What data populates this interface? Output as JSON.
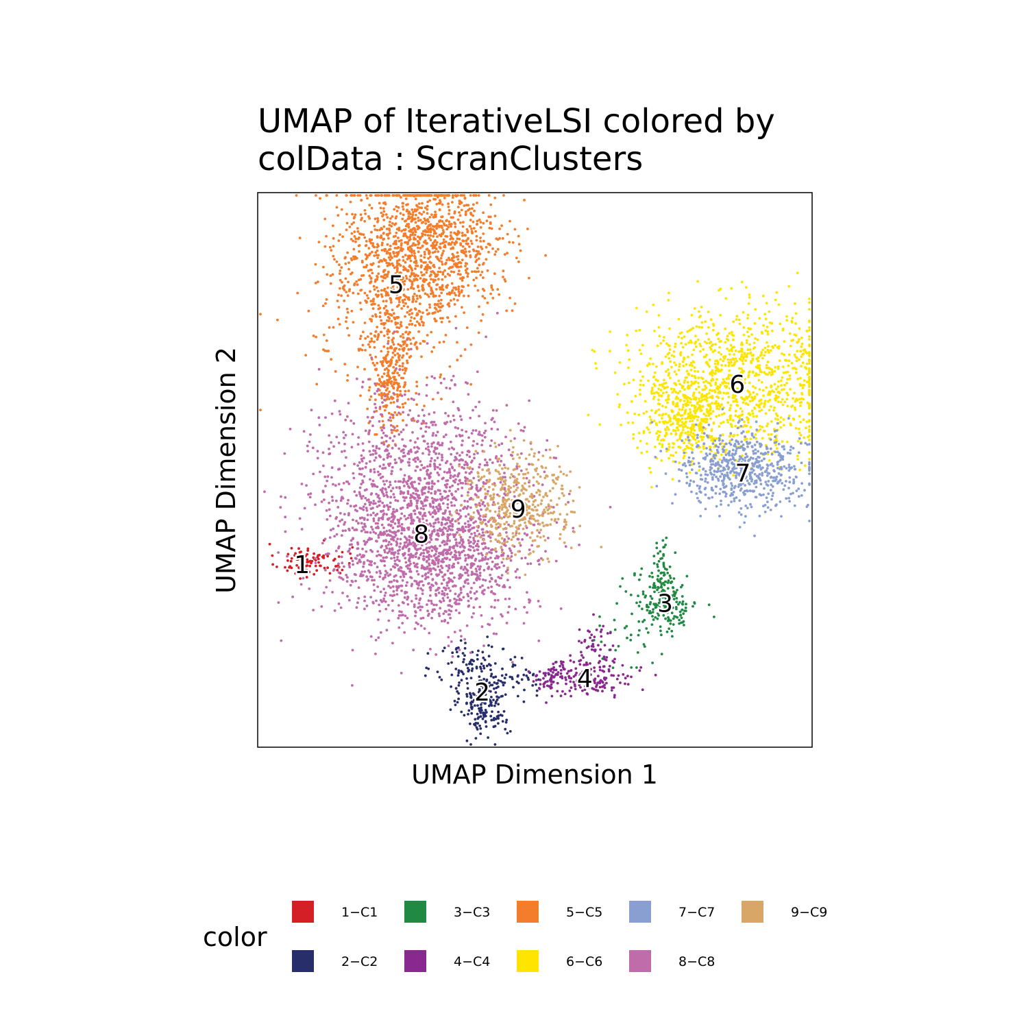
{
  "chart_data": {
    "type": "scatter",
    "title_line1": "UMAP of IterativeLSI  colored by",
    "title_line2": "colData :  ScranClusters",
    "xlabel": "UMAP Dimension 1",
    "ylabel": "UMAP Dimension 2",
    "xlim": [
      0,
      100
    ],
    "ylim": [
      0,
      100
    ],
    "grid": false,
    "axis_ticks": false,
    "legend": {
      "title": "color",
      "position": "bottom"
    },
    "clusters": [
      {
        "id": "1",
        "name": "1−C1",
        "color": "#D51F26",
        "n": 90,
        "label_xy": [
          8,
          33
        ],
        "parts": [
          [
            [
              7,
              33.5
            ],
            [
              2,
              1.6
            ],
            0.5
          ],
          [
            [
              12,
              33.5
            ],
            [
              2.5,
              1.5
            ],
            0.5
          ]
        ]
      },
      {
        "id": "2",
        "name": "2−C2",
        "color": "#272E6A",
        "n": 300,
        "label_xy": [
          40.5,
          10
        ],
        "parts": [
          [
            [
              41,
              8
            ],
            [
              2.2,
              3
            ],
            0.6
          ],
          [
            [
              38,
              15
            ],
            [
              3,
              2.5
            ],
            0.25
          ],
          [
            [
              46,
              12.5
            ],
            [
              3.5,
              2
            ],
            0.15
          ]
        ]
      },
      {
        "id": "3",
        "name": "3−C3",
        "color": "#208A42",
        "n": 260,
        "label_xy": [
          73.5,
          26
        ],
        "parts": [
          [
            [
              73.5,
              26
            ],
            [
              3,
              2.8
            ],
            0.7
          ],
          [
            [
              73,
              32
            ],
            [
              0.8,
              3
            ],
            0.2
          ],
          [
            [
              66,
              19
            ],
            [
              3,
              2.5
            ],
            0.1
          ]
        ]
      },
      {
        "id": "4",
        "name": "4−C4",
        "color": "#89288F",
        "n": 250,
        "label_xy": [
          59,
          12.5
        ],
        "parts": [
          [
            [
              59,
              12.5
            ],
            [
              4.5,
              1.8
            ],
            0.65
          ],
          [
            [
              61,
              18
            ],
            [
              2,
              2.5
            ],
            0.2
          ],
          [
            [
              53,
              12.5
            ],
            [
              2,
              1
            ],
            0.15
          ]
        ]
      },
      {
        "id": "5",
        "name": "5−C5",
        "color": "#F47D2B",
        "n": 1800,
        "label_xy": [
          25,
          83.5
        ],
        "parts": [
          [
            [
              26,
              86
            ],
            [
              7,
              9
            ],
            0.55
          ],
          [
            [
              33,
              91
            ],
            [
              6,
              5.5
            ],
            0.3
          ],
          [
            [
              24,
              68
            ],
            [
              1.8,
              6
            ],
            0.15
          ]
        ]
      },
      {
        "id": "6",
        "name": "6−C6",
        "color": "#FEE500",
        "n": 1400,
        "label_xy": [
          86.5,
          65.5
        ],
        "parts": [
          [
            [
              86,
              66
            ],
            [
              9,
              6.5
            ],
            0.8
          ],
          [
            [
              77,
              59
            ],
            [
              4,
              3.5
            ],
            0.2
          ]
        ]
      },
      {
        "id": "7",
        "name": "7−C7",
        "color": "#8A9FD1",
        "n": 600,
        "label_xy": [
          87.5,
          49.5
        ],
        "parts": [
          [
            [
              87.5,
              50
            ],
            [
              5.5,
              3.5
            ],
            1.0
          ]
        ]
      },
      {
        "id": "8",
        "name": "8−C8",
        "color": "#C06CAB",
        "n": 2300,
        "label_xy": [
          29.5,
          38.5
        ],
        "parts": [
          [
            [
              29,
              43
            ],
            [
              9.5,
              10
            ],
            0.75
          ],
          [
            [
              33,
              33
            ],
            [
              8,
              5
            ],
            0.25
          ]
        ]
      },
      {
        "id": "9",
        "name": "9−C9",
        "color": "#D8A767",
        "n": 450,
        "label_xy": [
          47,
          43
        ],
        "parts": [
          [
            [
              47,
              44
            ],
            [
              4.5,
              4.5
            ],
            1.0
          ]
        ]
      }
    ]
  }
}
